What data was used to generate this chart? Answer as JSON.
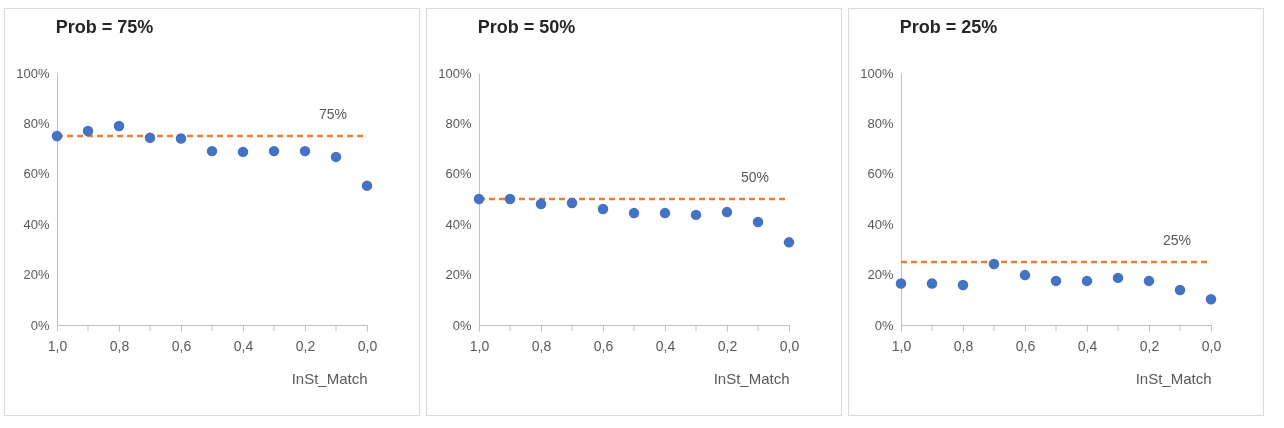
{
  "chart_data": [
    {
      "type": "scatter",
      "title": "Prob = 75%",
      "xlabel": "InSt_Match",
      "marker": "circle",
      "grid": false,
      "x": [
        1.0,
        0.9,
        0.8,
        0.7,
        0.6,
        0.5,
        0.4,
        0.3,
        0.2,
        0.1,
        0.0
      ],
      "series": [
        {
          "color": "#4472c4",
          "values": [
            75,
            77,
            79,
            74.3,
            74,
            69,
            68.7,
            69,
            69,
            66.7,
            55.3
          ]
        }
      ],
      "xlim": [
        1.0,
        0.0
      ],
      "xticks": [
        {
          "value": 1.0,
          "label": "1,0"
        },
        {
          "value": 0.9,
          "label": null
        },
        {
          "value": 0.8,
          "label": "0,8"
        },
        {
          "value": 0.7,
          "label": null
        },
        {
          "value": 0.6,
          "label": "0,6"
        },
        {
          "value": 0.5,
          "label": null
        },
        {
          "value": 0.4,
          "label": "0,4"
        },
        {
          "value": 0.3,
          "label": null
        },
        {
          "value": 0.2,
          "label": "0,2"
        },
        {
          "value": 0.1,
          "label": null
        },
        {
          "value": 0.0,
          "label": "0,0"
        }
      ],
      "ylim": [
        0,
        100
      ],
      "yticks": [
        {
          "value": 0,
          "label": "0%"
        },
        {
          "value": 20,
          "label": "20%"
        },
        {
          "value": 40,
          "label": "40%"
        },
        {
          "value": 60,
          "label": "60%"
        },
        {
          "value": 80,
          "label": "80%"
        },
        {
          "value": 100,
          "label": "100%"
        }
      ],
      "ref_lines": [
        {
          "axis": "y",
          "value": 75,
          "label": "75%",
          "color": "#ed7d31",
          "line_style": "dashed"
        }
      ]
    },
    {
      "type": "scatter",
      "title": "Prob = 50%",
      "xlabel": "InSt_Match",
      "marker": "circle",
      "grid": false,
      "x": [
        1.0,
        0.9,
        0.8,
        0.7,
        0.6,
        0.5,
        0.4,
        0.3,
        0.2,
        0.1,
        0.0
      ],
      "series": [
        {
          "color": "#4472c4",
          "values": [
            50,
            50,
            48,
            48.4,
            46,
            44.4,
            44.4,
            43.7,
            44.8,
            40.9,
            32.8
          ]
        }
      ],
      "xlim": [
        1.0,
        0.0
      ],
      "xticks": [
        {
          "value": 1.0,
          "label": "1,0"
        },
        {
          "value": 0.9,
          "label": null
        },
        {
          "value": 0.8,
          "label": "0,8"
        },
        {
          "value": 0.7,
          "label": null
        },
        {
          "value": 0.6,
          "label": "0,6"
        },
        {
          "value": 0.5,
          "label": null
        },
        {
          "value": 0.4,
          "label": "0,4"
        },
        {
          "value": 0.3,
          "label": null
        },
        {
          "value": 0.2,
          "label": "0,2"
        },
        {
          "value": 0.1,
          "label": null
        },
        {
          "value": 0.0,
          "label": "0,0"
        }
      ],
      "ylim": [
        0,
        100
      ],
      "yticks": [
        {
          "value": 0,
          "label": "0%"
        },
        {
          "value": 20,
          "label": "20%"
        },
        {
          "value": 40,
          "label": "40%"
        },
        {
          "value": 60,
          "label": "60%"
        },
        {
          "value": 80,
          "label": "80%"
        },
        {
          "value": 100,
          "label": "100%"
        }
      ],
      "ref_lines": [
        {
          "axis": "y",
          "value": 50,
          "label": "50%",
          "color": "#ed7d31",
          "line_style": "dashed"
        }
      ]
    },
    {
      "type": "scatter",
      "title": "Prob = 25%",
      "xlabel": "InSt_Match",
      "marker": "circle",
      "grid": false,
      "x": [
        1.0,
        0.9,
        0.8,
        0.7,
        0.6,
        0.5,
        0.4,
        0.3,
        0.2,
        0.1,
        0.0
      ],
      "series": [
        {
          "color": "#4472c4",
          "values": [
            16.5,
            16.5,
            15.9,
            24.2,
            19.8,
            17.5,
            17.5,
            18.7,
            17.5,
            13.9,
            10.2
          ]
        }
      ],
      "xlim": [
        1.0,
        0.0
      ],
      "xticks": [
        {
          "value": 1.0,
          "label": "1,0"
        },
        {
          "value": 0.9,
          "label": null
        },
        {
          "value": 0.8,
          "label": "0,8"
        },
        {
          "value": 0.7,
          "label": null
        },
        {
          "value": 0.6,
          "label": "0,6"
        },
        {
          "value": 0.5,
          "label": null
        },
        {
          "value": 0.4,
          "label": "0,4"
        },
        {
          "value": 0.3,
          "label": null
        },
        {
          "value": 0.2,
          "label": "0,2"
        },
        {
          "value": 0.1,
          "label": null
        },
        {
          "value": 0.0,
          "label": "0,0"
        }
      ],
      "ylim": [
        0,
        100
      ],
      "yticks": [
        {
          "value": 0,
          "label": "0%"
        },
        {
          "value": 20,
          "label": "20%"
        },
        {
          "value": 40,
          "label": "40%"
        },
        {
          "value": 60,
          "label": "60%"
        },
        {
          "value": 80,
          "label": "80%"
        },
        {
          "value": 100,
          "label": "100%"
        }
      ],
      "ref_lines": [
        {
          "axis": "y",
          "value": 25,
          "label": "25%",
          "color": "#ed7d31",
          "line_style": "dashed"
        }
      ]
    }
  ]
}
